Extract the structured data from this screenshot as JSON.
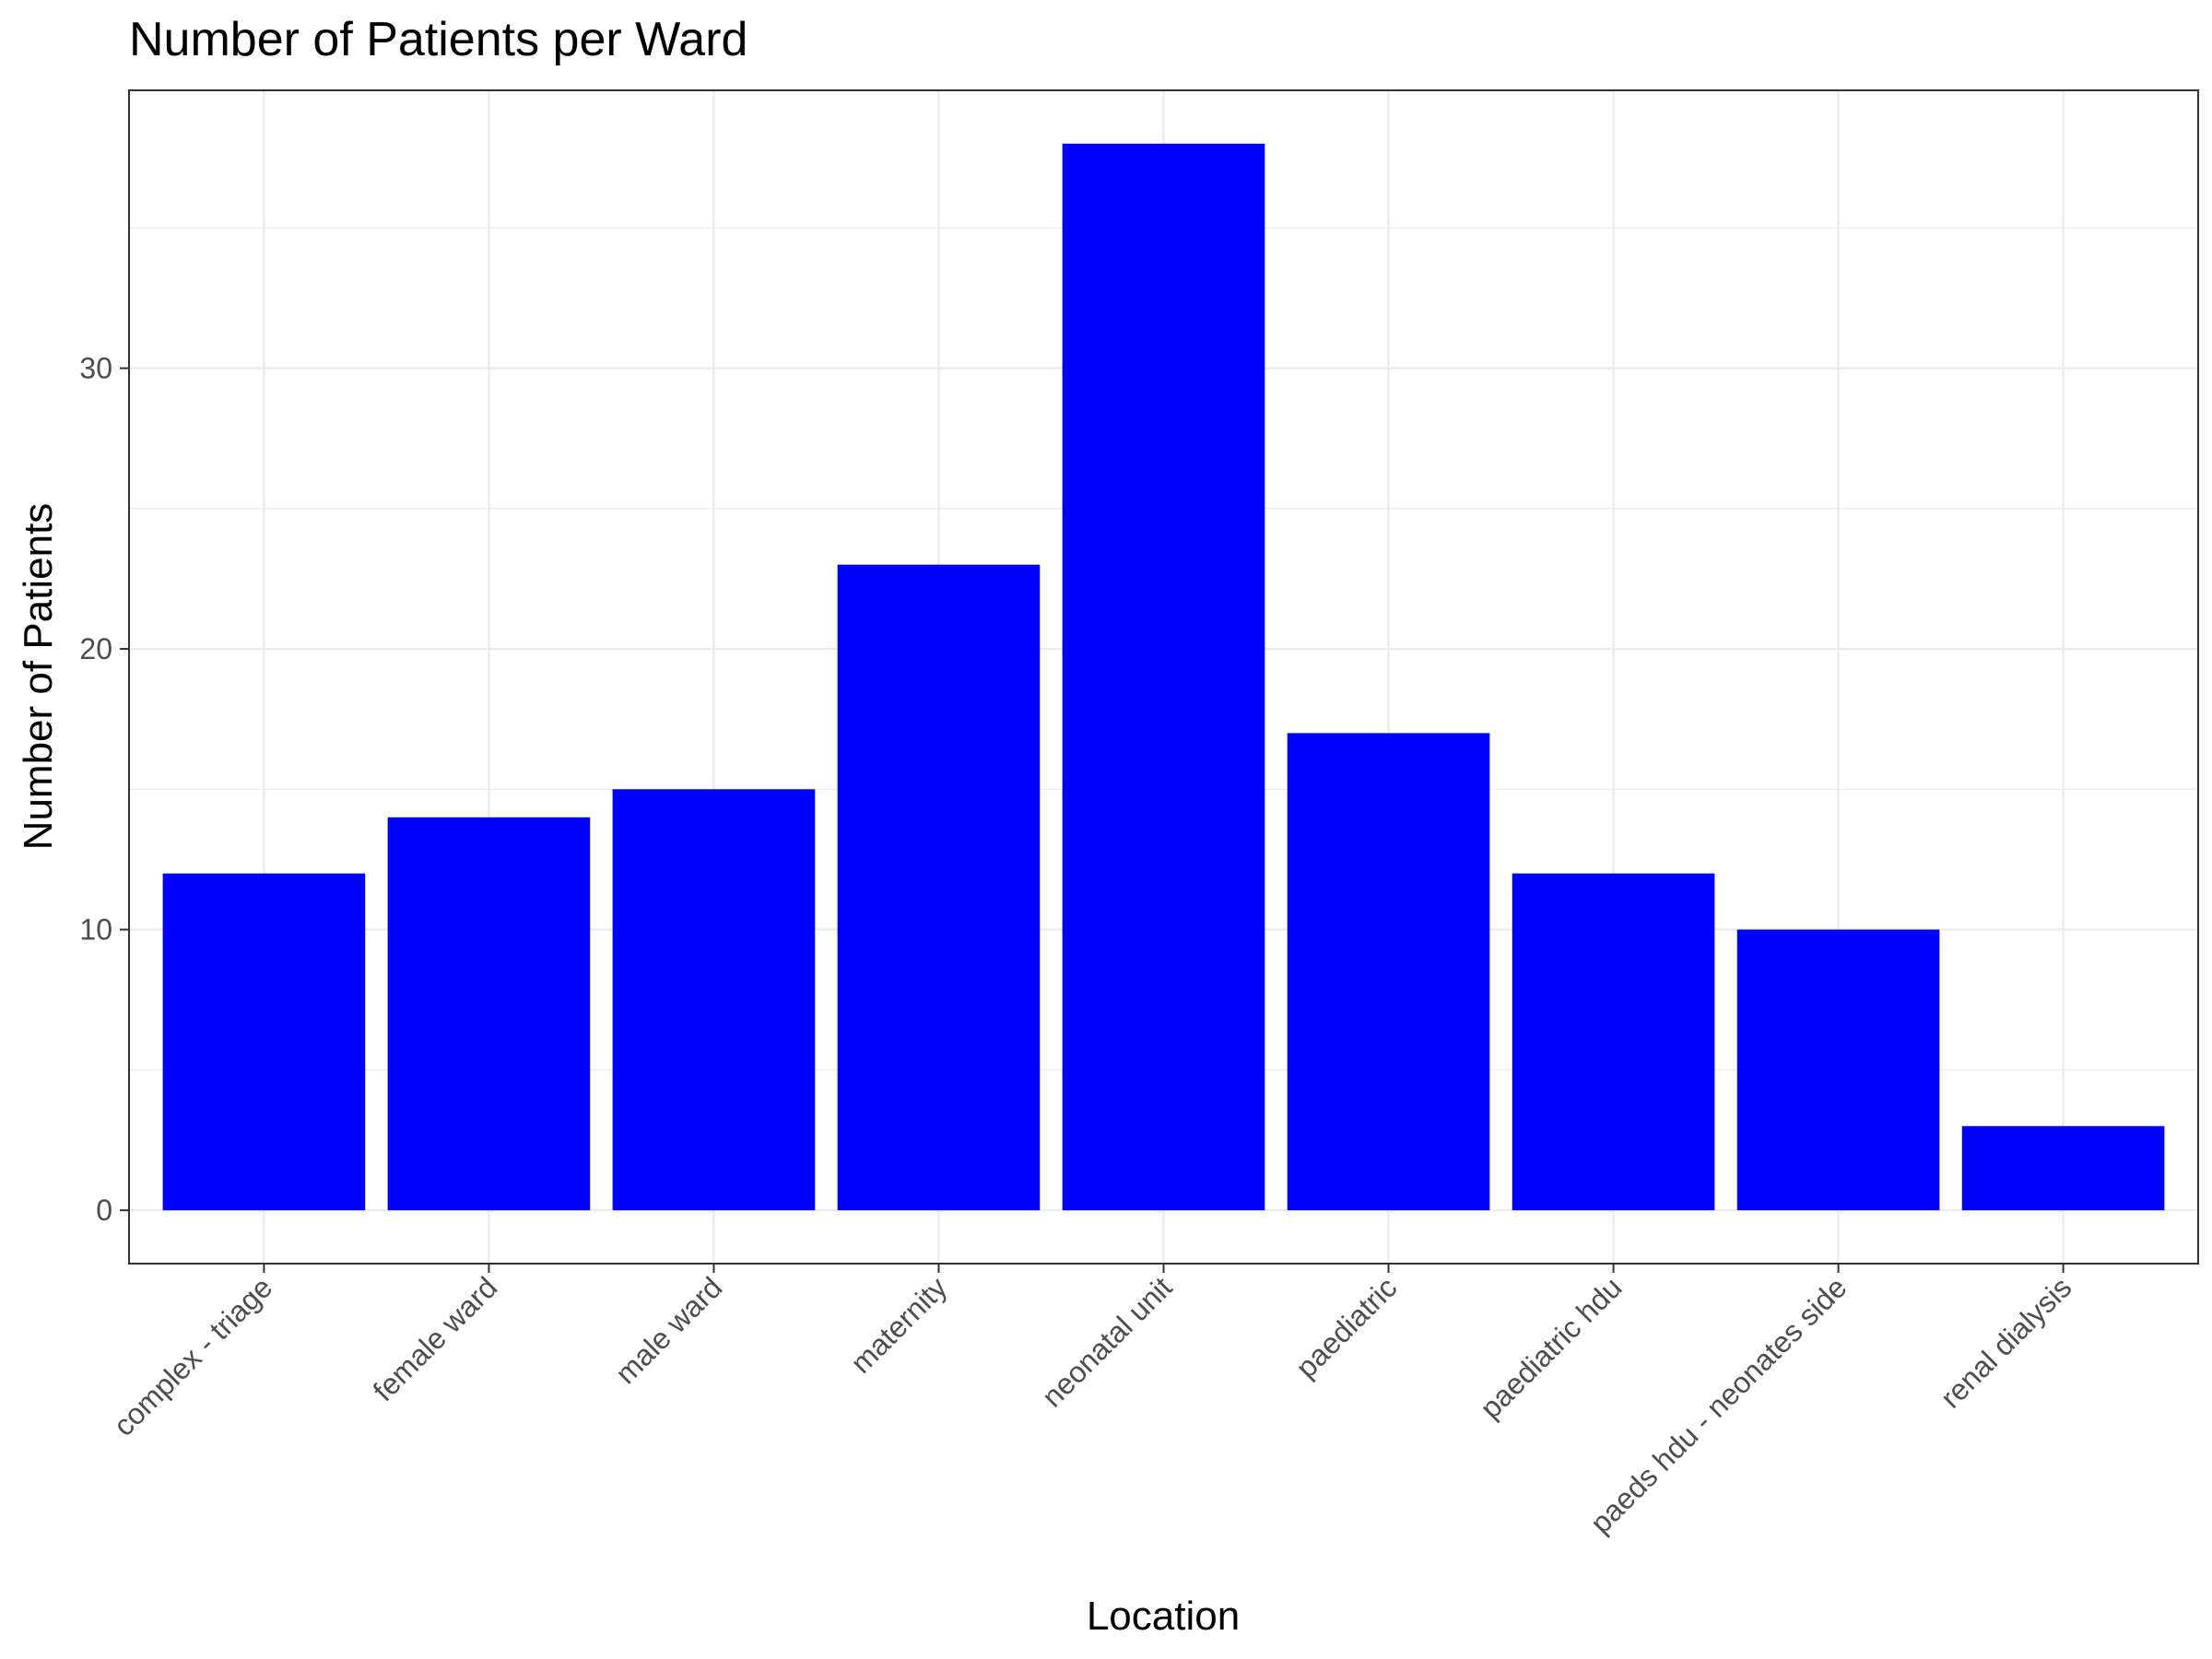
{
  "chart_data": {
    "type": "bar",
    "title": "Number of Patients per Ward",
    "xlabel": "Location",
    "ylabel": "Number of Patients",
    "categories": [
      "complex - triage",
      "female ward",
      "male ward",
      "maternity",
      "neonatal unit",
      "paediatric",
      "paediatric hdu",
      "paeds hdu - neonates side",
      "renal dialysis"
    ],
    "values": [
      12,
      14,
      15,
      23,
      38,
      17,
      12,
      10,
      3
    ],
    "ylim": [
      -1.9,
      39.9
    ],
    "yticks": [
      0,
      10,
      20,
      30
    ],
    "ytick_labels": [
      "0",
      "10",
      "20",
      "30"
    ],
    "grid": true,
    "bar_color": "#0000ff",
    "gridline_color": "#ebebeb",
    "panel_border_color": "#333333",
    "legend": "none"
  }
}
